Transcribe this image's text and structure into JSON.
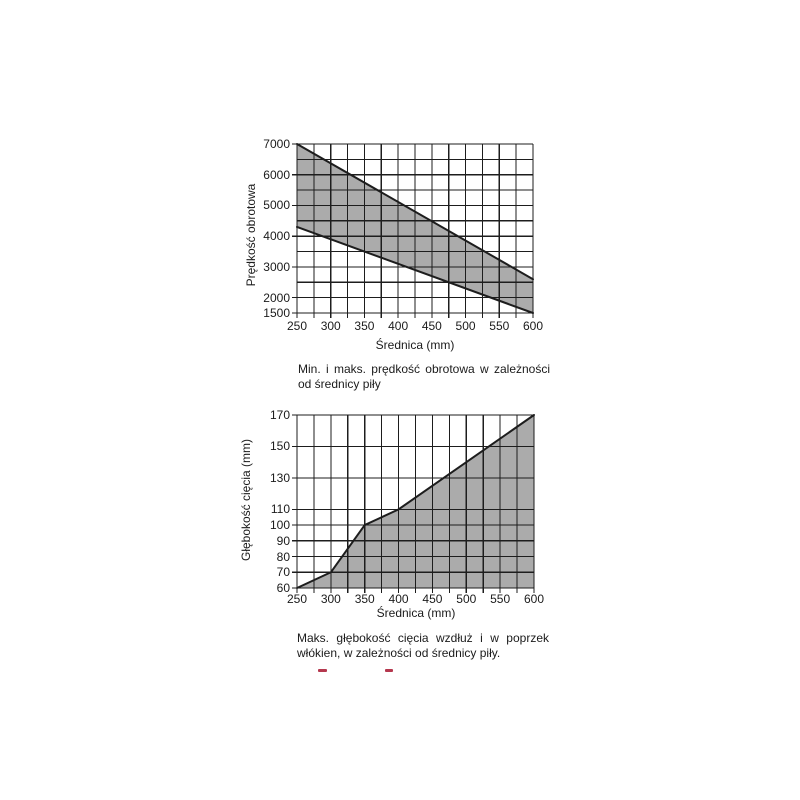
{
  "page": {
    "background": "#ffffff",
    "text_color": "#1b1b1b"
  },
  "colors": {
    "grid_line": "#1d1d1d",
    "band_fill": "#ababab",
    "red_mark": "#b5384e"
  },
  "chart_data": [
    {
      "name": "speed-vs-diameter",
      "type": "area",
      "subtype": "band-between-two-lines",
      "xlabel": "Średnica (mm)",
      "ylabel": "Prędkość obrotowa",
      "xlim": [
        250,
        600
      ],
      "ylim": [
        1500,
        7000
      ],
      "x_major_ticks": [
        250,
        300,
        350,
        400,
        450,
        500,
        550,
        600
      ],
      "x_minor_step": 25,
      "y_grid_step": 500,
      "y_labeled_ticks": [
        1500,
        2000,
        3000,
        4000,
        5000,
        6000,
        7000
      ],
      "grid": "on",
      "fill_color": "#ababab",
      "line_color": "#1d1d1d",
      "series": [
        {
          "name": "maks. prędkość obrotowa",
          "x": [
            250,
            600
          ],
          "y": [
            7000,
            2600
          ]
        },
        {
          "name": "min. prędkość obrotowa",
          "x": [
            250,
            600
          ],
          "y": [
            4300,
            1500
          ]
        }
      ],
      "caption_lines": [
        "Min. i maks. prędkość obrotowa w zależności",
        "od średnicy piły"
      ]
    },
    {
      "name": "depth-vs-diameter",
      "type": "area",
      "subtype": "area-to-baseline",
      "xlabel": "Średnica (mm)",
      "ylabel": "Głębokość cięcia (mm)",
      "xlim": [
        250,
        600
      ],
      "ylim": [
        60,
        170
      ],
      "x_major_ticks": [
        250,
        300,
        350,
        400,
        450,
        500,
        550,
        600
      ],
      "x_minor_step": 25,
      "y_grid_ticks": [
        60,
        70,
        80,
        90,
        100,
        110,
        130,
        150,
        170
      ],
      "grid": "on",
      "fill_color": "#ababab",
      "line_color": "#1d1d1d",
      "series": [
        {
          "name": "maks. głębokość cięcia",
          "x": [
            250,
            300,
            350,
            400,
            600
          ],
          "y": [
            60,
            70,
            100,
            110,
            170
          ]
        }
      ],
      "caption_lines": [
        "Maks. głębokość cięcia wzdłuż i w poprzek",
        "włókien, w zależności od średnicy piły."
      ]
    }
  ],
  "decorations": {
    "red_marks": {
      "count": 2,
      "color": "#b5384e"
    }
  }
}
